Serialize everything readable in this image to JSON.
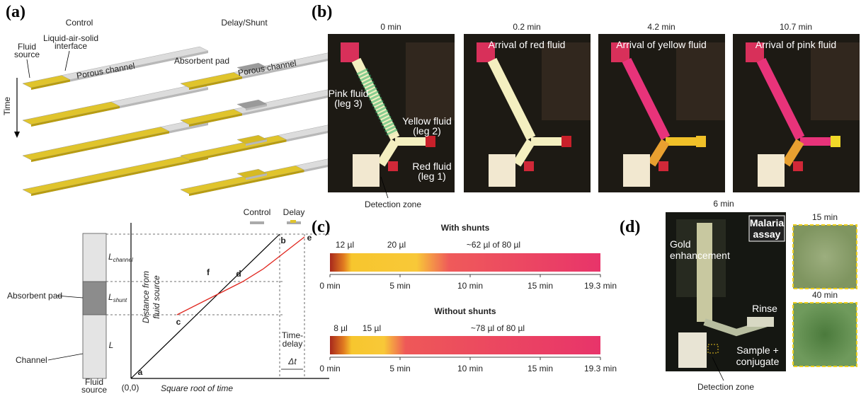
{
  "panel_a": {
    "label": "(a)",
    "control_title": "Control",
    "delay_title": "Delay/Shunt",
    "fluid_source": [
      "Fluid",
      "source"
    ],
    "interface": [
      "Liquid-air-solid",
      "interface"
    ],
    "control_channel": "Porous channel",
    "absorbent_pad": "Absorbent pad",
    "delay_channel": "Porous channel",
    "time": "Time",
    "graph": {
      "legend": [
        "Control",
        "Delay"
      ],
      "l_channel": {
        "main": "L",
        "sub": "channel"
      },
      "l_shunt": {
        "main": "L",
        "sub": "shunt"
      },
      "l": "L",
      "pad": "Absorbent pad",
      "channel": "Channel",
      "source": [
        "Fluid",
        "source"
      ],
      "y_label": [
        "Distance from",
        "fluid source"
      ],
      "x_label": "Square root of time",
      "origin": "(0,0)",
      "points": [
        "a",
        "b",
        "c",
        "d",
        "e",
        "f"
      ],
      "delay": [
        "Time-",
        "delay"
      ],
      "delta": "Δt"
    }
  },
  "panel_b": {
    "label": "(b)",
    "times": [
      "0 min",
      "0.2 min",
      "4.2 min",
      "10.7 min"
    ],
    "captions": [
      "Arrival of red fluid",
      "Arrival of yellow fluid",
      "Arrival of pink fluid"
    ],
    "pink": [
      "Pink fluid",
      "(leg 3)"
    ],
    "yellow": [
      "Yellow fluid",
      "(leg 2)"
    ],
    "red": [
      "Red fluid",
      "(leg 1)"
    ],
    "detection": "Detection zone"
  },
  "panel_c": {
    "label": "(c)",
    "with": {
      "title": "With shunts",
      "volumes": [
        "12 µl",
        "20 µl",
        "~62 µl of 80 µl"
      ],
      "ticks": [
        "0 min",
        "5 min",
        "10 min",
        "15 min",
        "19.3 min"
      ]
    },
    "without": {
      "title": "Without shunts",
      "volumes": [
        "8 µl",
        "15 µl",
        "~78 µl of 80 µl"
      ],
      "ticks": [
        "0 min",
        "5 min",
        "10 min",
        "15 min",
        "19.3 min"
      ]
    }
  },
  "panel_d": {
    "label": "(d)",
    "time": "6 min",
    "assay": [
      "Malaria",
      "assay"
    ],
    "gold": [
      "Gold",
      "enhancement"
    ],
    "rinse": "Rinse",
    "sample": [
      "Sample +",
      "conjugate"
    ],
    "detection": "Detection zone",
    "insets": [
      "15 min",
      "40 min"
    ]
  }
}
